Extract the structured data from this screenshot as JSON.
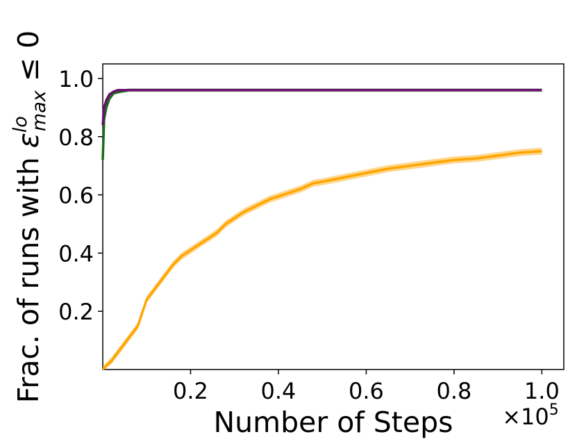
{
  "chart_data": {
    "type": "line",
    "xlabel": "Number of Steps",
    "x_multiplier": "×10",
    "x_multiplier_exponent": "5",
    "ylabel_prefix": "Frac. of runs with ",
    "ylabel_symbol": "ε",
    "ylabel_superscript": "lo",
    "ylabel_subscript": "max",
    "ylabel_suffix": " ≤ 0",
    "xlim": [
      0.0,
      1.05
    ],
    "ylim": [
      0.0,
      1.05
    ],
    "x_ticks": [
      0.2,
      0.4,
      0.6,
      0.8,
      1.0
    ],
    "x_tick_labels": [
      "0.2",
      "0.4",
      "0.6",
      "0.8",
      "1.0"
    ],
    "y_ticks": [
      0.2,
      0.4,
      0.6,
      0.8,
      1.0
    ],
    "y_tick_labels": [
      "0.2",
      "0.4",
      "0.6",
      "0.8",
      "1.0"
    ],
    "grid": false,
    "legend": "none",
    "series": [
      {
        "color": "#1a6b1a",
        "band": 0.006,
        "x": [
          0.0,
          0.003,
          0.008,
          0.015,
          0.025,
          0.04,
          0.06,
          0.1,
          1.0
        ],
        "y": [
          0.72,
          0.86,
          0.9,
          0.93,
          0.95,
          0.955,
          0.96,
          0.96,
          0.96
        ]
      },
      {
        "color": "#6a0f6f",
        "band": 0.004,
        "x": [
          0.0,
          0.003,
          0.008,
          0.015,
          0.025,
          0.035,
          0.05,
          0.1,
          1.0
        ],
        "y": [
          0.84,
          0.9,
          0.925,
          0.945,
          0.955,
          0.96,
          0.96,
          0.96,
          0.96
        ]
      },
      {
        "color": "#ffa500",
        "band": 0.012,
        "x": [
          0.0,
          0.02,
          0.04,
          0.06,
          0.08,
          0.1,
          0.12,
          0.14,
          0.16,
          0.18,
          0.2,
          0.22,
          0.24,
          0.26,
          0.28,
          0.3,
          0.32,
          0.34,
          0.36,
          0.38,
          0.4,
          0.42,
          0.45,
          0.48,
          0.5,
          0.55,
          0.6,
          0.65,
          0.7,
          0.75,
          0.8,
          0.85,
          0.9,
          0.95,
          1.0
        ],
        "y": [
          0.0,
          0.03,
          0.07,
          0.11,
          0.15,
          0.24,
          0.28,
          0.32,
          0.36,
          0.39,
          0.41,
          0.43,
          0.45,
          0.47,
          0.5,
          0.52,
          0.54,
          0.555,
          0.57,
          0.585,
          0.595,
          0.605,
          0.62,
          0.64,
          0.645,
          0.66,
          0.675,
          0.69,
          0.7,
          0.71,
          0.72,
          0.725,
          0.735,
          0.745,
          0.75
        ]
      }
    ]
  }
}
